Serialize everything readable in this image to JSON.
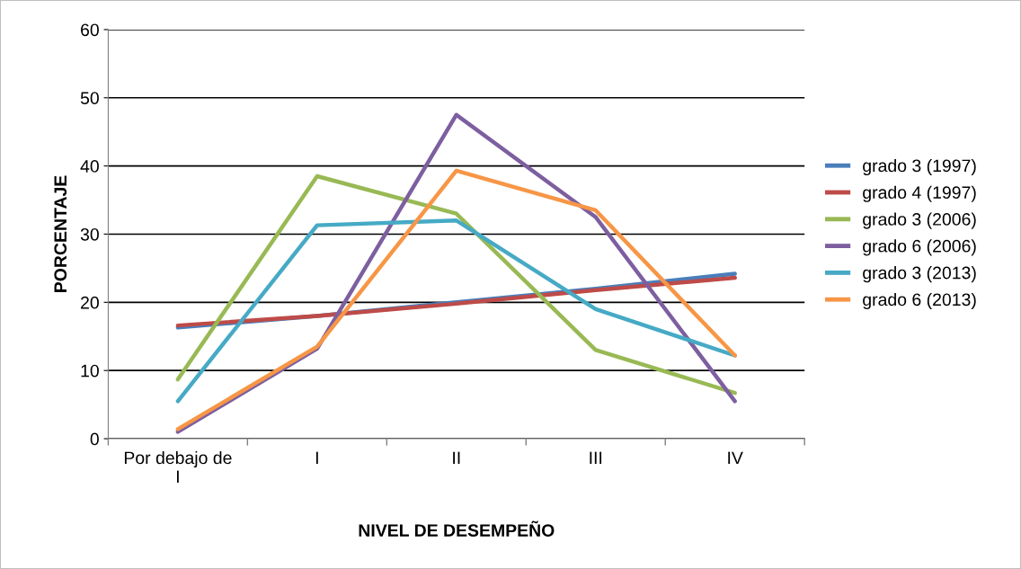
{
  "chart_data": {
    "type": "line",
    "xlabel": "NIVEL DE DESEMPEÑO",
    "ylabel": "PORCENTAJE",
    "categories": [
      "Por debajo de\nI",
      "I",
      "II",
      "III",
      "IV"
    ],
    "series": [
      {
        "name": "grado 3 (1997)",
        "color": "#4a7ebb",
        "values": [
          16.3,
          18,
          20,
          22,
          24.2
        ]
      },
      {
        "name": "grado 4 (1997)",
        "color": "#be4b48",
        "values": [
          16.6,
          18,
          19.8,
          21.8,
          23.6
        ]
      },
      {
        "name": "grado 3 (2006)",
        "color": "#98b954",
        "values": [
          8.7,
          38.5,
          33,
          13,
          6.7
        ]
      },
      {
        "name": "grado 6 (2006)",
        "color": "#7d5fa0",
        "values": [
          1,
          13.2,
          47.5,
          32.5,
          5.5
        ]
      },
      {
        "name": "grado 3 (2013)",
        "color": "#46aac5",
        "values": [
          5.5,
          31.3,
          32,
          19,
          12.2
        ]
      },
      {
        "name": "grado 6 (2013)",
        "color": "#f79646",
        "values": [
          1.4,
          13.5,
          39.3,
          33.5,
          12.2
        ]
      }
    ],
    "ylim": [
      0,
      60
    ],
    "yticks": [
      0,
      10,
      20,
      30,
      40,
      50,
      60
    ],
    "grid": "y",
    "legend": "right",
    "marker": "none",
    "line_style": "solid"
  }
}
